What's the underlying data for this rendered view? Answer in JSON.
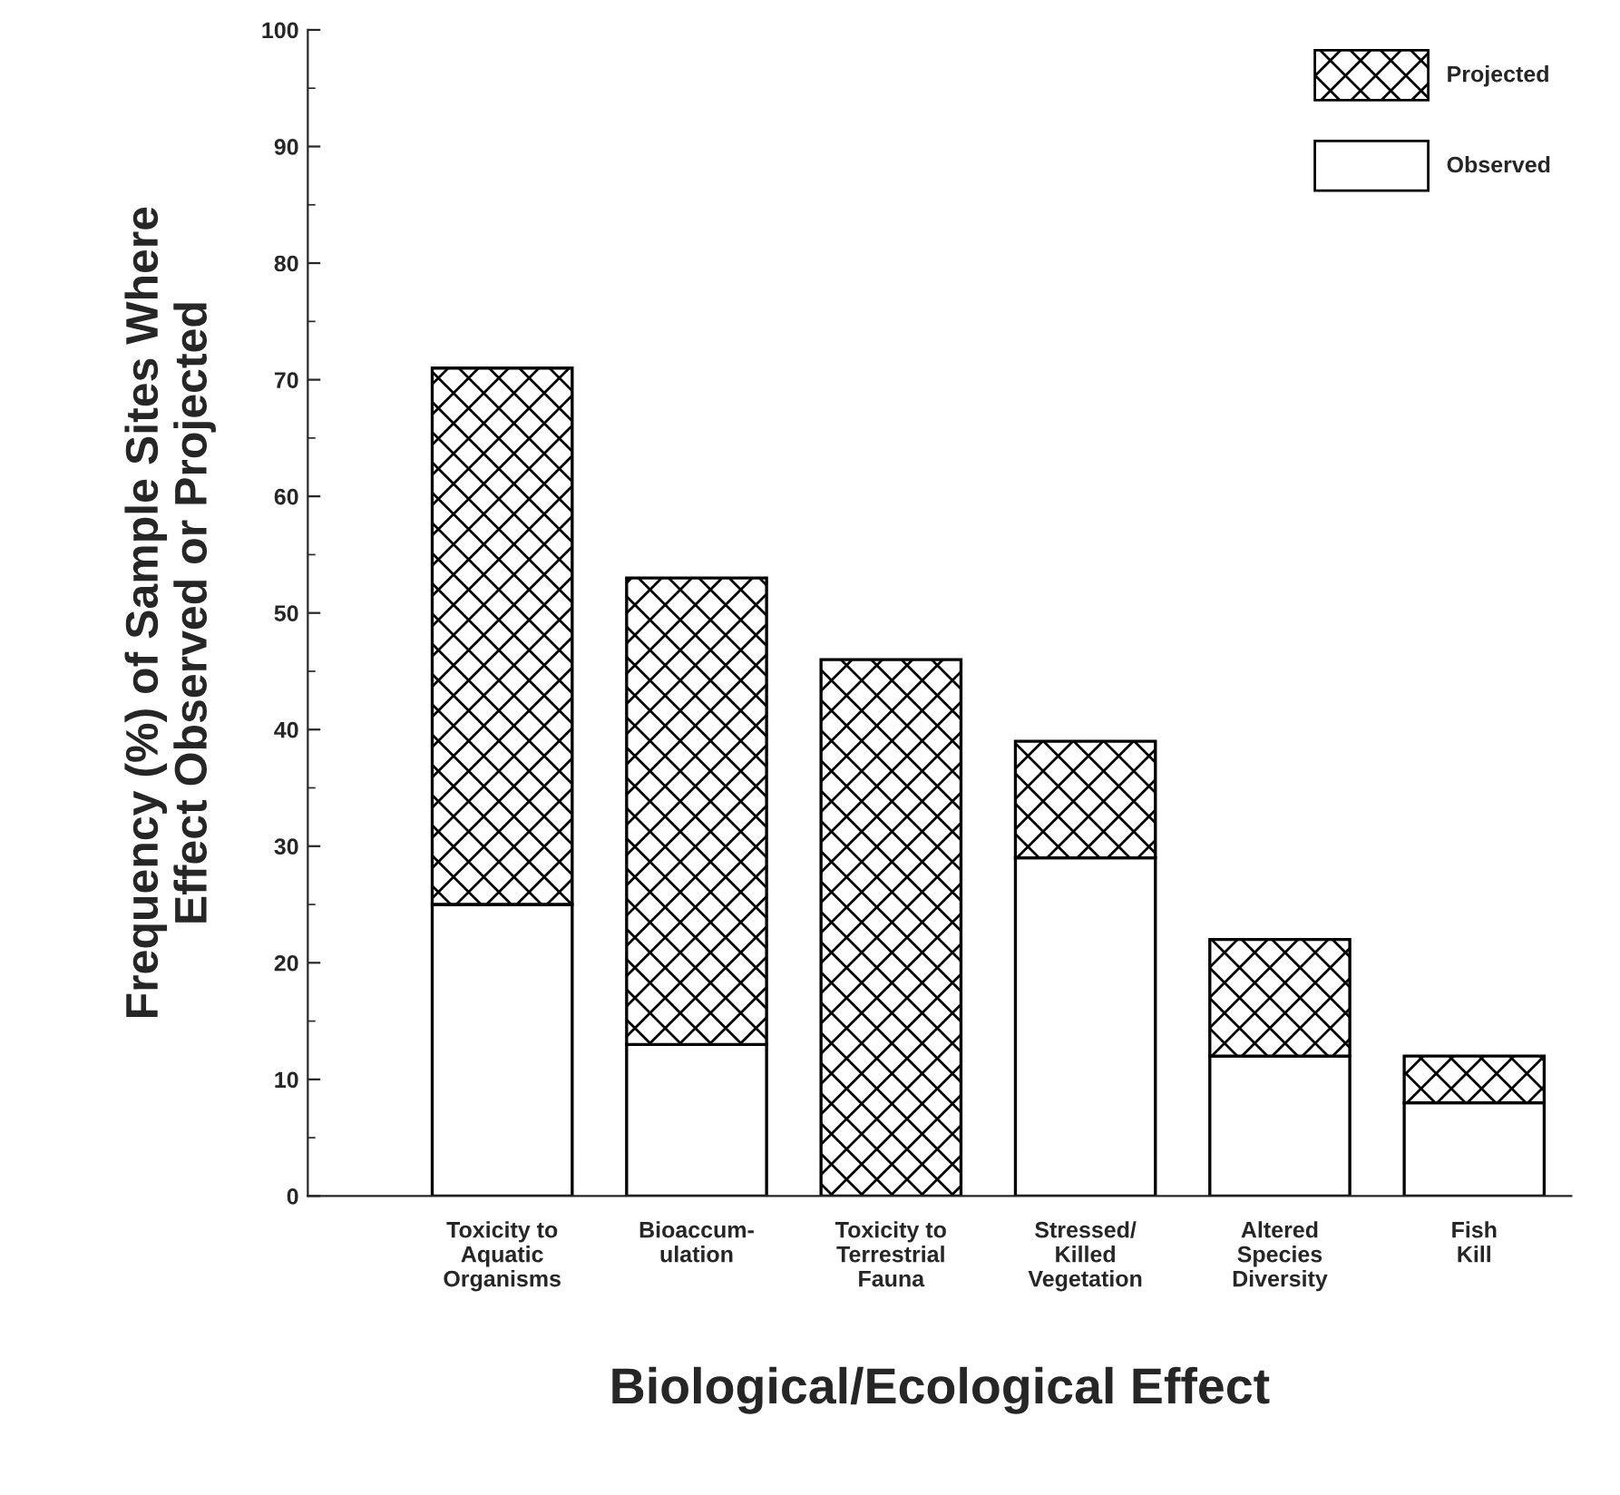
{
  "chart_data": {
    "type": "bar",
    "stacked": true,
    "xlabel": "Biological/Ecological Effect",
    "ylabel": "Frequency (%) of Sample Sites Where\nEffect Observed or Projected",
    "categories": [
      "Toxicity to\nAquatic\nOrganisms",
      "Bioaccum-\nulation",
      "Toxicity to\nTerrestrial\nFauna",
      "Stressed/\nKilled\nVegetation",
      "Altered\nSpecies\nDiversity",
      "Fish\nKill"
    ],
    "series": [
      {
        "name": "Observed",
        "color": "#ffffff",
        "values": [
          25,
          13,
          0,
          29,
          12,
          8
        ]
      },
      {
        "name": "Projected",
        "color": "#000000",
        "values": [
          46,
          40,
          46,
          10,
          10,
          4
        ]
      }
    ],
    "ylim": [
      0,
      100
    ],
    "yticks": [
      0,
      10,
      20,
      30,
      40,
      50,
      60,
      70,
      80,
      90,
      100
    ],
    "grid": false,
    "legend": "top right"
  }
}
